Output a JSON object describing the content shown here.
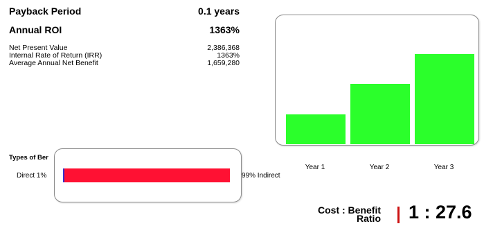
{
  "summary": {
    "payback_label": "Payback Period",
    "payback_value": "0.1 years",
    "roi_label": "Annual ROI",
    "roi_value": "1363%",
    "npv_label": "Net Present Value",
    "npv_value": "2,386,368",
    "irr_label": "Internal Rate of Return (IRR)",
    "irr_value": "1363%",
    "avg_label": "Average Annual Net Benefit",
    "avg_value": "1,659,280"
  },
  "types": {
    "title": "Types of Ber",
    "direct_label": "Direct 1%",
    "indirect_label": "99% Indirect"
  },
  "ratio": {
    "label_line1": "Cost : Benefit",
    "label_line2": "Ratio",
    "value": "1 : 27.6",
    "separator_color": "#cc1111"
  },
  "chart_data": [
    {
      "type": "bar",
      "categories": [
        "Year 1",
        "Year 2",
        "Year 3"
      ],
      "values": [
        0.3,
        0.6,
        0.9
      ],
      "ylim": [
        0,
        1
      ],
      "bar_color": "#2bff2b",
      "grid": false
    },
    {
      "type": "bar",
      "orientation": "horizontal stacked",
      "series": [
        {
          "name": "Direct",
          "values": [
            1
          ],
          "color": "#3333cc"
        },
        {
          "name": "Indirect",
          "values": [
            99
          ],
          "color": "#ff1133"
        }
      ],
      "xlim": [
        0,
        100
      ]
    }
  ]
}
